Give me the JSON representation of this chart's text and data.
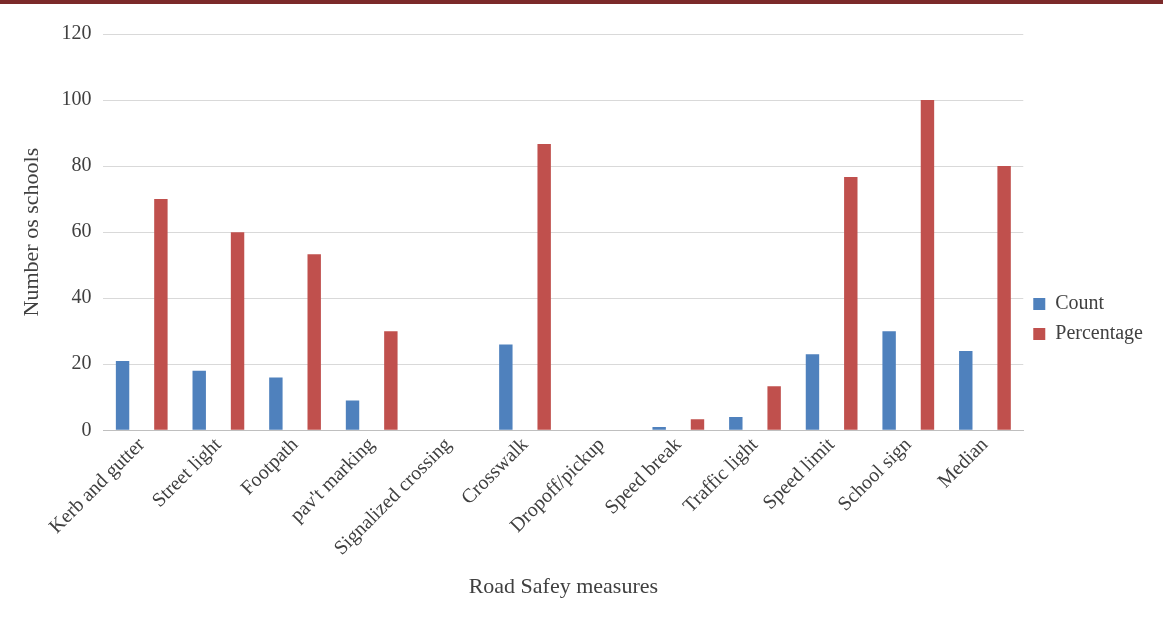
{
  "chart_data": {
    "type": "bar",
    "xlabel": "Road Safey measures",
    "ylabel": "Number os schools",
    "categories": [
      "Kerb and gutter",
      "Street light",
      "Footpath",
      "pav't marking",
      "Signalized crossing",
      "Crosswalk",
      "Dropoff/pickup",
      "Speed break",
      "Traffic light",
      "Speed limit",
      "School sign",
      "Median"
    ],
    "series": [
      {
        "name": "Count",
        "color": "#4f81bd",
        "values": [
          21,
          18,
          16,
          9,
          0,
          26,
          0,
          1,
          4,
          23,
          30,
          24
        ]
      },
      {
        "name": "Percentage",
        "color": "#c0504d",
        "values": [
          70,
          60,
          53.3,
          30,
          0,
          86.7,
          0,
          3.3,
          13.3,
          76.7,
          100,
          80
        ]
      }
    ],
    "ylim": [
      0,
      120
    ],
    "yticks": [
      0,
      20,
      40,
      60,
      80,
      100,
      120
    ],
    "grid": "y",
    "legend": "right"
  }
}
